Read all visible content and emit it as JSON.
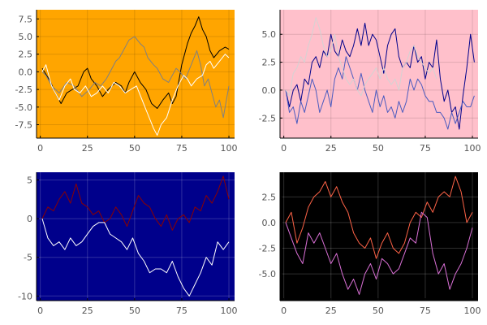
{
  "chart_data": [
    {
      "type": "line",
      "panel": "top-left",
      "background": "#FFA500",
      "grid_color": "#000000",
      "xlim": [
        -2,
        103
      ],
      "ylim": [
        -9.4,
        8.8
      ],
      "xticks": [
        0,
        25,
        50,
        75,
        100
      ],
      "xtick_labels": [
        "0",
        "25",
        "50",
        "75",
        "100"
      ],
      "yticks": [
        -7.5,
        -5.0,
        -2.5,
        0.0,
        2.5,
        5.0,
        7.5
      ],
      "ytick_labels": [
        "-7.5",
        "-5.0",
        "-2.5",
        "0.0",
        "2.5",
        "5.0",
        "7.5"
      ],
      "series": [
        {
          "name": "y1",
          "color": "#000000",
          "x": [
            1,
            5,
            8,
            11,
            14,
            17,
            20,
            23,
            25,
            27,
            30,
            33,
            36,
            40,
            43,
            45,
            47,
            50,
            53,
            56,
            59,
            62,
            65,
            68,
            70,
            72,
            75,
            78,
            80,
            82,
            84,
            86,
            88,
            90,
            92,
            95,
            98,
            100
          ],
          "values": [
            0.5,
            -1.2,
            -3.0,
            -4.5,
            -3.0,
            -2.5,
            -2.0,
            0.0,
            0.5,
            -1.0,
            -2.0,
            -3.5,
            -2.5,
            -1.5,
            -2.0,
            -3.0,
            -1.5,
            0.0,
            -1.5,
            -2.5,
            -4.5,
            -5.2,
            -4.0,
            -3.0,
            -4.5,
            -3.5,
            1.0,
            4.0,
            5.5,
            6.5,
            7.8,
            6.0,
            5.0,
            3.0,
            2.0,
            3.0,
            3.5,
            3.2
          ]
        },
        {
          "name": "y2",
          "color": "#808080",
          "x": [
            1,
            3,
            6,
            10,
            14,
            18,
            22,
            26,
            29,
            32,
            35,
            38,
            40,
            42,
            44,
            47,
            50,
            53,
            55,
            57,
            60,
            62,
            65,
            68,
            70,
            72,
            74,
            77,
            80,
            83,
            85,
            87,
            89,
            91,
            93,
            95,
            97,
            100
          ],
          "values": [
            0.0,
            -0.5,
            -2.0,
            -3.0,
            -1.5,
            -2.0,
            -3.5,
            -2.5,
            -1.5,
            -2.0,
            -1.0,
            0.5,
            1.5,
            2.0,
            3.0,
            4.5,
            5.0,
            4.0,
            3.5,
            2.0,
            1.0,
            0.5,
            -1.0,
            -1.5,
            -0.5,
            0.5,
            0.0,
            -1.0,
            1.0,
            3.0,
            1.0,
            -2.0,
            -1.0,
            -3.0,
            -5.0,
            -4.0,
            -6.5,
            -2.0
          ]
        },
        {
          "name": "y3",
          "color": "#FFFFFF",
          "x": [
            1,
            3,
            6,
            8,
            10,
            13,
            16,
            18,
            21,
            24,
            27,
            30,
            33,
            36,
            39,
            42,
            45,
            48,
            51,
            54,
            57,
            60,
            62,
            64,
            67,
            70,
            73,
            76,
            78,
            80,
            83,
            86,
            88,
            90,
            92,
            95,
            98,
            100
          ],
          "values": [
            0.0,
            1.0,
            -2.0,
            -3.0,
            -4.0,
            -2.0,
            -1.0,
            -2.5,
            -3.0,
            -2.0,
            -3.5,
            -3.0,
            -2.0,
            -3.0,
            -1.5,
            -2.0,
            -3.0,
            -2.5,
            -2.0,
            -4.0,
            -6.0,
            -8.0,
            -9.0,
            -7.5,
            -6.5,
            -4.0,
            -2.0,
            -0.5,
            -1.0,
            -2.0,
            -1.0,
            -0.5,
            1.0,
            1.5,
            0.5,
            1.5,
            2.5,
            2.0
          ]
        }
      ]
    },
    {
      "type": "line",
      "panel": "top-right",
      "background": "#FFC0CB",
      "grid_color": "#000000",
      "xlim": [
        -2,
        103
      ],
      "ylim": [
        -4.3,
        7.2
      ],
      "xticks": [
        0,
        25,
        50,
        75,
        100
      ],
      "xtick_labels": [
        "0",
        "25",
        "50",
        "75",
        "100"
      ],
      "yticks": [
        -2.5,
        0.0,
        2.5,
        5.0
      ],
      "ytick_labels": [
        "-2.5",
        "0.0",
        "2.5",
        "5.0"
      ],
      "series": [
        {
          "name": "y1",
          "color": "#00008B",
          "x": [
            1,
            3,
            5,
            7,
            9,
            11,
            13,
            15,
            17,
            19,
            21,
            23,
            25,
            27,
            29,
            31,
            33,
            35,
            37,
            39,
            41,
            43,
            45,
            47,
            49,
            51,
            53,
            55,
            57,
            59,
            61,
            63,
            65,
            67,
            69,
            71,
            73,
            75,
            77,
            79,
            81,
            83,
            85,
            87,
            89,
            91,
            93,
            95,
            97,
            99,
            101
          ],
          "values": [
            0.0,
            -1.5,
            0.0,
            0.5,
            -1.0,
            1.0,
            0.5,
            2.5,
            3.0,
            2.0,
            3.5,
            3.0,
            5.0,
            3.5,
            3.0,
            4.5,
            3.5,
            3.0,
            4.0,
            5.5,
            4.0,
            6.0,
            4.0,
            5.0,
            4.5,
            3.0,
            1.5,
            4.0,
            5.0,
            5.5,
            3.0,
            2.0,
            2.5,
            2.0,
            4.0,
            2.5,
            3.0,
            1.0,
            2.5,
            2.0,
            4.5,
            1.0,
            -1.0,
            0.0,
            -2.0,
            -1.5,
            -3.5,
            -0.5,
            2.0,
            5.0,
            2.5
          ]
        },
        {
          "name": "y2",
          "color": "#4A5ABF",
          "x": [
            1,
            3,
            5,
            7,
            9,
            11,
            13,
            15,
            17,
            19,
            21,
            23,
            25,
            27,
            29,
            31,
            33,
            35,
            37,
            39,
            41,
            43,
            45,
            47,
            49,
            51,
            53,
            55,
            57,
            59,
            61,
            63,
            65,
            67,
            69,
            71,
            73,
            75,
            77,
            79,
            81,
            83,
            85,
            87,
            89,
            91,
            93,
            95,
            97,
            99,
            101
          ],
          "values": [
            0.0,
            -2.0,
            -1.5,
            -3.0,
            -1.0,
            -2.0,
            -0.5,
            1.0,
            0.0,
            -2.0,
            -1.0,
            0.0,
            -1.5,
            1.0,
            2.0,
            1.0,
            3.0,
            2.0,
            1.0,
            0.0,
            1.5,
            0.0,
            -1.0,
            -2.0,
            0.0,
            -1.5,
            -0.5,
            -2.0,
            -1.5,
            -2.5,
            -1.0,
            -2.0,
            -1.0,
            1.0,
            0.0,
            1.0,
            0.5,
            -0.5,
            -1.0,
            -1.0,
            -2.0,
            -2.0,
            -2.5,
            -3.5,
            -2.0,
            -3.0,
            -2.0,
            -1.0,
            -1.5,
            -1.5,
            -0.5
          ]
        },
        {
          "name": "y3",
          "color": "#D3D3D3",
          "x": [
            1,
            3,
            5,
            7,
            9,
            11,
            13,
            15,
            17,
            19,
            21,
            23,
            25,
            27,
            29,
            31,
            33,
            35,
            37,
            39,
            41,
            43,
            45,
            47,
            49,
            51,
            53,
            55,
            57,
            59,
            61,
            63,
            65,
            67,
            69,
            71,
            73,
            75,
            77,
            79,
            81
          ],
          "values": [
            0.0,
            -0.5,
            1.5,
            2.0,
            3.0,
            2.5,
            4.0,
            5.0,
            6.5,
            5.5,
            4.0,
            3.0,
            3.5,
            5.0,
            3.0,
            2.0,
            1.0,
            0.5,
            1.0,
            0.0,
            -0.5,
            0.5,
            1.0,
            1.5,
            2.0,
            1.0,
            2.0,
            1.0,
            0.5,
            1.0,
            0.0,
            2.0,
            2.5,
            3.5,
            4.0,
            3.0,
            2.5,
            2.0,
            1.5,
            2.0,
            1.0
          ]
        }
      ]
    },
    {
      "type": "line",
      "panel": "bottom-left",
      "background": "#00008B",
      "grid_color": "#FFFFFF",
      "xlim": [
        -2,
        103
      ],
      "ylim": [
        -10.6,
        6.0
      ],
      "xticks": [
        0,
        25,
        50,
        75,
        100
      ],
      "xtick_labels": [
        "0",
        "25",
        "50",
        "75",
        "100"
      ],
      "yticks": [
        -10,
        -5,
        0,
        5
      ],
      "ytick_labels": [
        "-10",
        "-5",
        "0",
        "5"
      ],
      "series": [
        {
          "name": "y1",
          "color": "#8B0000",
          "x": [
            1,
            4,
            7,
            10,
            13,
            16,
            19,
            22,
            25,
            28,
            31,
            34,
            37,
            40,
            43,
            46,
            49,
            52,
            55,
            58,
            61,
            64,
            67,
            70,
            73,
            76,
            79,
            82,
            85,
            88,
            91,
            94,
            97,
            100
          ],
          "values": [
            0.0,
            1.5,
            1.0,
            2.5,
            3.5,
            2.0,
            4.5,
            2.0,
            1.5,
            0.5,
            1.0,
            -0.5,
            0.0,
            1.5,
            0.5,
            -1.0,
            1.0,
            3.0,
            2.0,
            1.5,
            0.0,
            -1.0,
            0.5,
            -1.5,
            0.0,
            0.5,
            -0.5,
            1.5,
            1.0,
            3.0,
            2.0,
            3.5,
            5.5,
            2.5
          ]
        },
        {
          "name": "y2",
          "color": "#FFFFFF",
          "x": [
            1,
            4,
            7,
            10,
            13,
            16,
            19,
            22,
            25,
            28,
            31,
            34,
            37,
            40,
            43,
            46,
            49,
            52,
            55,
            58,
            61,
            64,
            67,
            70,
            73,
            76,
            79,
            82,
            85,
            88,
            91,
            94,
            97,
            100
          ],
          "values": [
            0.0,
            -2.5,
            -3.5,
            -3.0,
            -4.0,
            -2.5,
            -3.5,
            -3.0,
            -2.0,
            -1.0,
            -0.5,
            -0.5,
            -2.0,
            -2.5,
            -3.0,
            -4.0,
            -2.5,
            -4.5,
            -5.5,
            -7.0,
            -6.5,
            -6.5,
            -7.0,
            -5.5,
            -7.5,
            -9.0,
            -10.0,
            -8.5,
            -7.0,
            -5.0,
            -6.0,
            -3.0,
            -4.0,
            -3.0
          ]
        }
      ]
    },
    {
      "type": "line",
      "panel": "bottom-right",
      "background": "#000000",
      "grid_color": "#FFFFFF",
      "xlim": [
        -2,
        103
      ],
      "ylim": [
        -7.6,
        4.9
      ],
      "xticks": [
        0,
        25,
        50,
        75,
        100
      ],
      "xtick_labels": [
        "0",
        "25",
        "50",
        "75",
        "100"
      ],
      "yticks": [
        -5.0,
        -2.5,
        0.0,
        2.5
      ],
      "ytick_labels": [
        "-5.0",
        "-2.5",
        "0.0",
        "2.5"
      ],
      "series": [
        {
          "name": "y1",
          "color": "#FF6347",
          "x": [
            1,
            4,
            7,
            10,
            13,
            16,
            19,
            22,
            25,
            28,
            31,
            34,
            37,
            40,
            43,
            46,
            49,
            52,
            55,
            58,
            61,
            64,
            67,
            70,
            73,
            76,
            79,
            82,
            85,
            88,
            91,
            94,
            97,
            100
          ],
          "values": [
            0.0,
            1.0,
            -2.0,
            -0.5,
            1.5,
            2.5,
            3.0,
            4.0,
            2.5,
            3.5,
            2.0,
            1.0,
            -1.0,
            -2.0,
            -2.5,
            -1.5,
            -3.5,
            -2.0,
            -1.0,
            -2.5,
            -3.0,
            -2.0,
            0.0,
            1.0,
            0.5,
            2.0,
            1.0,
            2.5,
            3.0,
            2.5,
            4.5,
            3.0,
            0.0,
            1.0
          ]
        },
        {
          "name": "y2",
          "color": "#DA70D6",
          "x": [
            1,
            4,
            7,
            10,
            13,
            16,
            19,
            22,
            25,
            28,
            31,
            34,
            37,
            40,
            43,
            46,
            49,
            52,
            55,
            58,
            61,
            64,
            67,
            70,
            73,
            76,
            79,
            82,
            85,
            88,
            91,
            94,
            97,
            100
          ],
          "values": [
            0.0,
            -1.5,
            -3.0,
            -4.0,
            -1.0,
            -2.0,
            -1.0,
            -2.5,
            -4.0,
            -3.0,
            -5.0,
            -6.5,
            -5.5,
            -7.0,
            -5.0,
            -4.0,
            -5.5,
            -3.5,
            -4.0,
            -5.0,
            -4.5,
            -3.0,
            -1.5,
            -2.0,
            1.0,
            0.5,
            -3.0,
            -5.0,
            -4.0,
            -6.5,
            -5.0,
            -4.0,
            -2.5,
            -0.5
          ]
        }
      ]
    }
  ]
}
